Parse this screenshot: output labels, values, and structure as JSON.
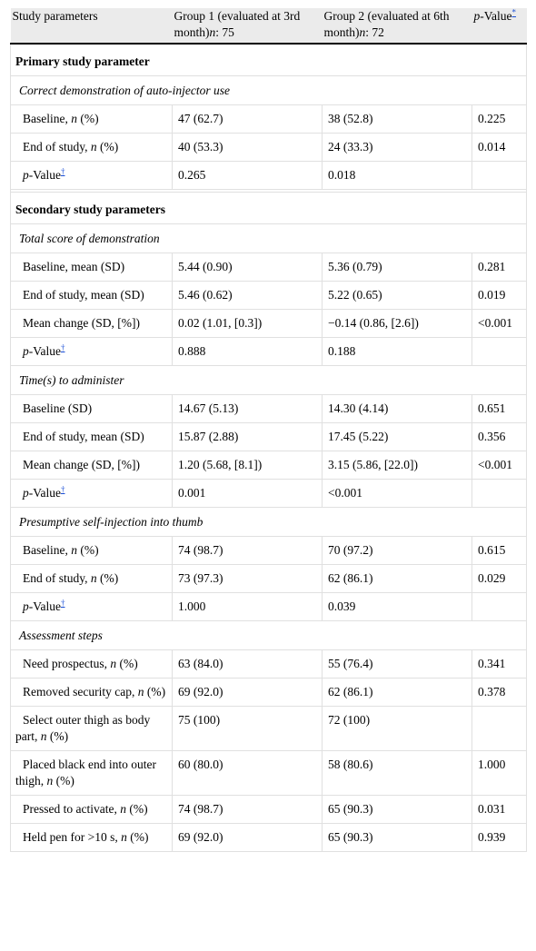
{
  "header": {
    "col1": "Study parameters",
    "col2_a": "Group 1 (evaluated at 3rd month)",
    "col2_n": "n",
    "col2_b": ": 75",
    "col3_a": "Group 2 (evaluated at 6th month)",
    "col3_n": "n",
    "col3_b": ": 72",
    "col4_p": "p",
    "col4_b": "-Value",
    "col4_fn": "*"
  },
  "dagger": "†",
  "primary": {
    "title": "Primary study parameter",
    "sub": "Correct demonstration of auto-injector use",
    "rows": [
      {
        "a": "Baseline, ",
        "i": "n",
        "b": " (%)",
        "g1": "47 (62.7)",
        "g2": "38 (52.8)",
        "p": "0.225"
      },
      {
        "a": "End of study, ",
        "i": "n",
        "b": " (%)",
        "g1": "40 (53.3)",
        "g2": "24 (33.3)",
        "p": "0.014"
      }
    ],
    "pval": {
      "p": "p",
      "label": "-Value",
      "g1": "0.265",
      "g2": "0.018"
    }
  },
  "secondary": {
    "title": "Secondary study parameters",
    "total": {
      "sub": "Total score of demonstration",
      "rows": [
        {
          "label": "Baseline, mean (SD)",
          "g1": "5.44 (0.90)",
          "g2": "5.36 (0.79)",
          "p": "0.281"
        },
        {
          "label": "End of study, mean (SD)",
          "g1": "5.46 (0.62)",
          "g2": "5.22 (0.65)",
          "p": "0.019"
        },
        {
          "label": "Mean change (SD, [%])",
          "g1": "0.02 (1.01, [0.3])",
          "g2": "−0.14 (0.86, [2.6])",
          "p": "<0.001"
        }
      ],
      "pval": {
        "g1": "0.888",
        "g2": "0.188"
      }
    },
    "time": {
      "sub": "Time(s) to administer",
      "rows": [
        {
          "label": "Baseline (SD)",
          "g1": "14.67 (5.13)",
          "g2": "14.30 (4.14)",
          "p": "0.651"
        },
        {
          "label": "End of study, mean (SD)",
          "g1": "15.87 (2.88)",
          "g2": "17.45 (5.22)",
          "p": "0.356"
        },
        {
          "label": "Mean change (SD, [%])",
          "g1": "1.20 (5.68, [8.1])",
          "g2": "3.15 (5.86, [22.0])",
          "p": "<0.001"
        }
      ],
      "pval": {
        "g1": "0.001",
        "g2": "<0.001"
      }
    },
    "thumb": {
      "sub": "Presumptive self-injection into thumb",
      "rows": [
        {
          "a": "Baseline, ",
          "i": "n",
          "b": " (%)",
          "g1": "74 (98.7)",
          "g2": "70 (97.2)",
          "p": "0.615"
        },
        {
          "a": "End of study, ",
          "i": "n",
          "b": " (%)",
          "g1": "73 (97.3)",
          "g2": "62 (86.1)",
          "p": "0.029"
        }
      ],
      "pval": {
        "g1": "1.000",
        "g2": "0.039"
      }
    },
    "steps": {
      "sub": "Assessment steps",
      "rows": [
        {
          "a": "Need prospectus, ",
          "i": "n",
          "b": " (%)",
          "g1": "63 (84.0)",
          "g2": "55 (76.4)",
          "p": "0.341"
        },
        {
          "a": "Removed security cap, ",
          "i": "n",
          "b": " (%)",
          "g1": "69 (92.0)",
          "g2": "62 (86.1)",
          "p": "0.378"
        },
        {
          "a": "Select outer thigh as body part, ",
          "i": "n",
          "b": " (%)",
          "g1": "75 (100)",
          "g2": "72 (100)",
          "p": ""
        },
        {
          "a": "Placed black end into outer thigh, ",
          "i": "n",
          "b": " (%)",
          "g1": "60 (80.0)",
          "g2": "58 (80.6)",
          "p": "1.000"
        },
        {
          "a": "Pressed to activate, ",
          "i": "n",
          "b": " (%)",
          "g1": "74 (98.7)",
          "g2": "65 (90.3)",
          "p": "0.031"
        },
        {
          "a": "Held pen for >10 s, ",
          "i": "n",
          "b": " (%)",
          "g1": "69 (92.0)",
          "g2": "65 (90.3)",
          "p": "0.939"
        }
      ]
    }
  }
}
